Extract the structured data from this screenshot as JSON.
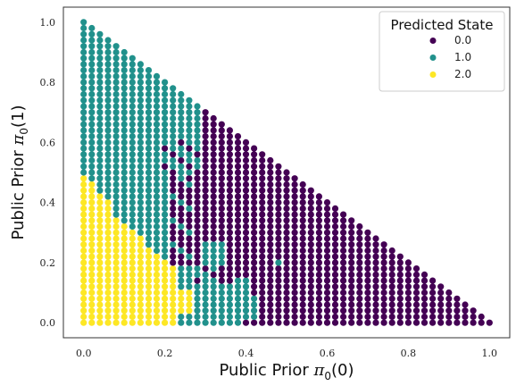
{
  "chart_data": {
    "type": "scatter",
    "xlabel_text": "Public Prior",
    "xlabel_math": "π",
    "xlabel_sub": "0",
    "xlabel_arg": "(0)",
    "ylabel_text": "Public Prior",
    "ylabel_math": "π",
    "ylabel_sub": "0",
    "ylabel_arg": "(1)",
    "xlim": [
      -0.05,
      1.05
    ],
    "ylim": [
      -0.05,
      1.05
    ],
    "xticks": [
      0.0,
      0.2,
      0.4,
      0.6,
      0.8,
      1.0
    ],
    "yticks": [
      0.0,
      0.2,
      0.4,
      0.6,
      0.8,
      1.0
    ],
    "xtick_labels": [
      "0.0",
      "0.2",
      "0.4",
      "0.6",
      "0.8",
      "1.0"
    ],
    "ytick_labels": [
      "0.0",
      "0.2",
      "0.4",
      "0.6",
      "0.8",
      "1.0"
    ],
    "grid": false,
    "legend": {
      "title": "Predicted State",
      "placement": "top-right",
      "entries": [
        {
          "label": "0.0",
          "color": "#440154"
        },
        {
          "label": "1.0",
          "color": "#21918c"
        },
        {
          "label": "2.0",
          "color": "#fde725"
        }
      ]
    },
    "grid_step": 0.02,
    "description_of_classes": "Points on simplex grid x+y<=1; class assigned per point",
    "class_colors": {
      "0": "#440154",
      "1": "#21918c",
      "2": "#fde725"
    }
  }
}
